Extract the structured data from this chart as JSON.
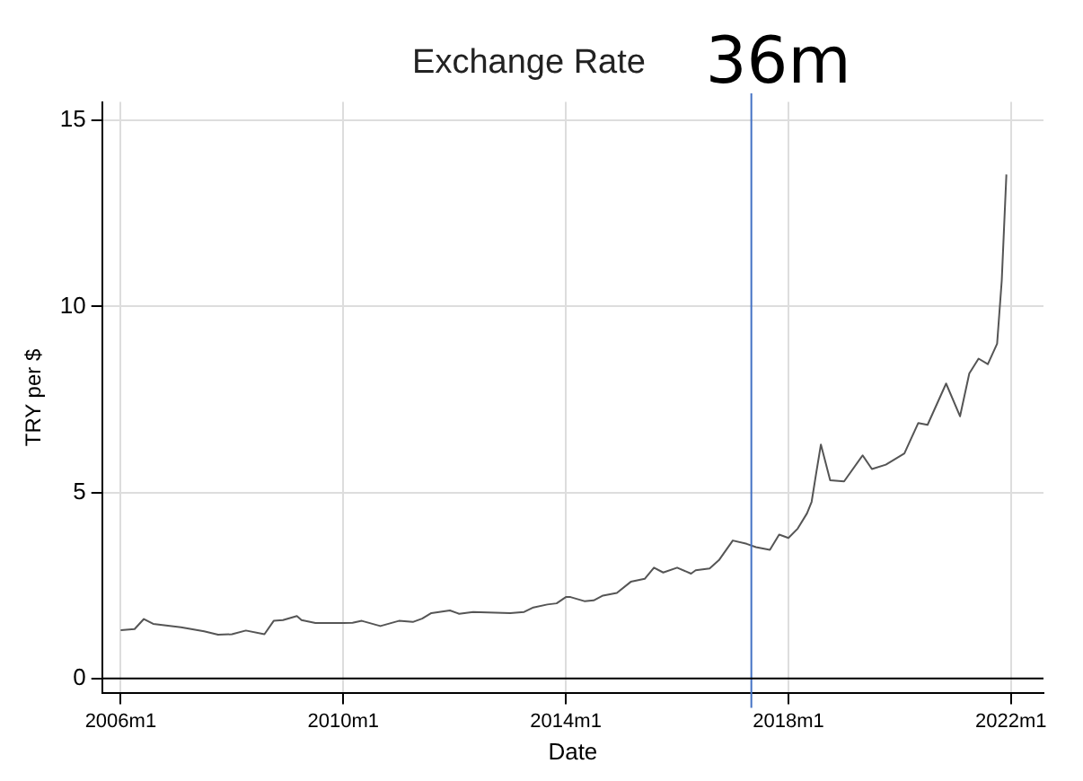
{
  "chart_data": {
    "type": "line",
    "title": "Exchange Rate",
    "xlabel": "Date",
    "ylabel": "TRY per $",
    "x": [
      "2006-01",
      "2006-04",
      "2006-06",
      "2006-08",
      "2007-02",
      "2007-07",
      "2007-10",
      "2008-01",
      "2008-04",
      "2008-08",
      "2008-10",
      "2008-12",
      "2009-03",
      "2009-04",
      "2009-07",
      "2010-01",
      "2010-03",
      "2010-05",
      "2010-09",
      "2011-01",
      "2011-04",
      "2011-06",
      "2011-08",
      "2011-12",
      "2012-02",
      "2012-05",
      "2013-01",
      "2013-04",
      "2013-06",
      "2013-09",
      "2013-11",
      "2014-01",
      "2014-02",
      "2014-05",
      "2014-07",
      "2014-09",
      "2014-12",
      "2015-03",
      "2015-06",
      "2015-08",
      "2015-10",
      "2016-01",
      "2016-04",
      "2016-05",
      "2016-08",
      "2016-10",
      "2017-01",
      "2017-04",
      "2017-06",
      "2017-09",
      "2017-11",
      "2018-01",
      "2018-03",
      "2018-05",
      "2018-06",
      "2018-07",
      "2018-08",
      "2018-10",
      "2019-01",
      "2019-05",
      "2019-07",
      "2019-10",
      "2020-02",
      "2020-05",
      "2020-07",
      "2020-11",
      "2021-02",
      "2021-04",
      "2021-06",
      "2021-08",
      "2021-10",
      "2021-11",
      "2021-12"
    ],
    "series": [
      {
        "color": "#555555",
        "values": [
          1.3,
          1.33,
          1.6,
          1.47,
          1.38,
          1.27,
          1.18,
          1.19,
          1.29,
          1.19,
          1.55,
          1.57,
          1.68,
          1.57,
          1.49,
          1.49,
          1.5,
          1.55,
          1.41,
          1.55,
          1.52,
          1.61,
          1.76,
          1.83,
          1.74,
          1.79,
          1.76,
          1.79,
          1.91,
          1.99,
          2.02,
          2.19,
          2.19,
          2.08,
          2.1,
          2.23,
          2.3,
          2.6,
          2.68,
          2.98,
          2.85,
          2.98,
          2.82,
          2.91,
          2.96,
          3.18,
          3.71,
          3.62,
          3.53,
          3.46,
          3.87,
          3.78,
          4.03,
          4.44,
          4.75,
          5.53,
          6.29,
          5.33,
          5.3,
          6.0,
          5.63,
          5.75,
          6.05,
          6.87,
          6.82,
          7.93,
          7.05,
          8.2,
          8.6,
          8.45,
          9.0,
          10.7,
          13.55
        ]
      }
    ],
    "xlim": [
      "2005-09",
      "2022-08"
    ],
    "xticks": [
      {
        "value": "2006-01",
        "label": "2006m1"
      },
      {
        "value": "2010-01",
        "label": "2010m1"
      },
      {
        "value": "2014-01",
        "label": "2014m1"
      },
      {
        "value": "2018-01",
        "label": "2018m1"
      },
      {
        "value": "2022-01",
        "label": "2022m1"
      }
    ],
    "ylim": [
      -0.4,
      15.5
    ],
    "yticks": [
      0,
      5,
      10,
      15
    ],
    "grid": true,
    "ref_lines": [
      {
        "axis": "x",
        "value": "2017-05",
        "label": "36m",
        "color": "#4472c4"
      },
      {
        "axis": "y",
        "value": 0,
        "color": "#000000"
      }
    ]
  }
}
